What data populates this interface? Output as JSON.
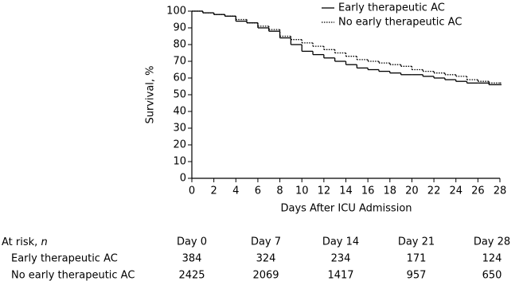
{
  "chart_data": {
    "type": "step",
    "x_label": "Days After ICU Admission",
    "y_label": "Survival, %",
    "x": [
      0,
      1,
      2,
      3,
      4,
      5,
      6,
      7,
      8,
      9,
      10,
      11,
      12,
      13,
      14,
      15,
      16,
      17,
      18,
      19,
      20,
      21,
      22,
      23,
      24,
      25,
      26,
      27,
      28
    ],
    "series": [
      {
        "name": "Early therapeutic AC",
        "color": "#000000",
        "line_style": "solid",
        "values": [
          100,
          99,
          98,
          97,
          94,
          93,
          90,
          88,
          84,
          80,
          76,
          74,
          72,
          70,
          68,
          66,
          65,
          64,
          63,
          62,
          62,
          61,
          60,
          59,
          58,
          57,
          57,
          56,
          56
        ]
      },
      {
        "name": "No early therapeutic AC",
        "color": "#000000",
        "line_style": "dotted",
        "values": [
          100,
          99,
          98,
          97,
          95,
          93,
          91,
          89,
          85,
          83,
          81,
          79,
          77,
          75,
          73,
          71,
          70,
          69,
          68,
          67,
          65,
          64,
          63,
          62,
          61,
          59,
          58,
          57,
          57
        ]
      }
    ],
    "xlim": [
      0,
      28
    ],
    "xticks": [
      0,
      2,
      4,
      6,
      8,
      10,
      12,
      14,
      16,
      18,
      20,
      22,
      24,
      26,
      28
    ],
    "ylim": [
      0,
      100
    ],
    "yticks": [
      0,
      10,
      20,
      30,
      40,
      50,
      60,
      70,
      80,
      90,
      100
    ],
    "legend": "top-right"
  },
  "at_risk_table": {
    "label": "At risk,",
    "label_symbol": "n",
    "columns": [
      "Day 0",
      "Day 7",
      "Day 14",
      "Day 21",
      "Day 28"
    ],
    "rows": [
      {
        "name": "Early therapeutic AC",
        "values": [
          384,
          324,
          234,
          171,
          124
        ]
      },
      {
        "name": "No early therapeutic AC",
        "values": [
          2425,
          2069,
          1417,
          957,
          650
        ]
      }
    ]
  }
}
